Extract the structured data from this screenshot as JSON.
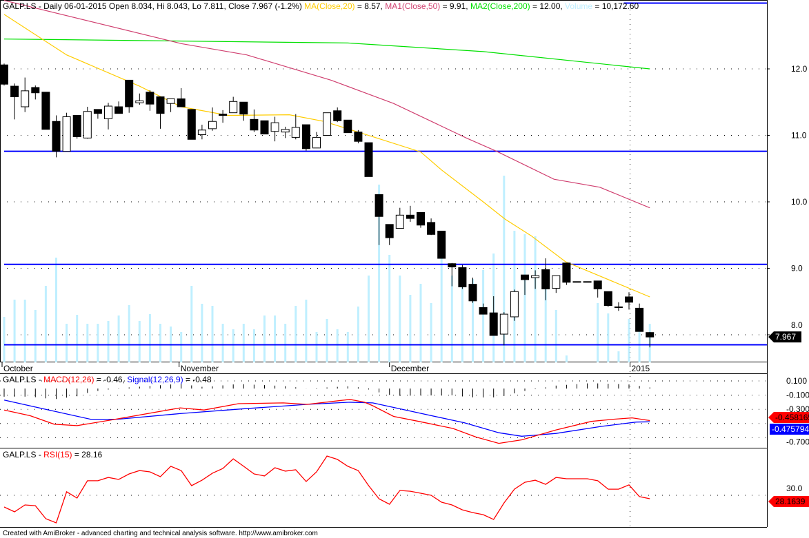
{
  "header": {
    "symbol": "GALP.LS - Daily 06-01-2015 Open 8.034, Hi 8.043, Lo 7.811, Close 7.967 (-1.2%) ",
    "ma20_label": "MA(Close,20)",
    "ma20_value": " = 8.57, ",
    "ma50_label": "MA1(Close,50)",
    "ma50_value": " = 9.91, ",
    "ma200_label": "MA2(Close,200)",
    "ma200_value": " = 12.00, ",
    "volume_label": "Volume",
    "volume_value": " = 10,172.60"
  },
  "macd_header": {
    "prefix": "GALP.LS - ",
    "macd_label": "MACD(12,26)",
    "macd_value": " = -0.46, ",
    "signal_label": "Signal(12,26,9)",
    "signal_value": " = -0.48"
  },
  "rsi_header": {
    "prefix": "GALP.LS - ",
    "rsi_label": "RSI(15)",
    "rsi_value": " = 28.16"
  },
  "footer": "Created with AmiBroker - advanced charting and technical analysis software. http://www.amibroker.com",
  "colors": {
    "ma20": "#ffcc00",
    "ma50": "#d04070",
    "ma200": "#00e000",
    "volume": "#bfefff",
    "levels": "#0000ff",
    "macd": "#ff0000",
    "signal": "#0000ff",
    "rsi": "#ff0000"
  },
  "chart_data": [
    {
      "type": "candlestick",
      "title": "GALP.LS - Daily",
      "x_labels": [
        {
          "index": 0,
          "label": "October"
        },
        {
          "index": 17,
          "label": "November"
        },
        {
          "index": 37.2,
          "label": "December"
        },
        {
          "index": 60.3,
          "label": "2015"
        }
      ],
      "y_ticks": [
        "12.0",
        "11.0",
        "10.0",
        "9.0",
        "8.0"
      ],
      "y_tick_values": [
        12,
        11,
        10,
        9,
        8
      ],
      "ylim": [
        7.74,
        13.03
      ],
      "last_price_tag": "7.967",
      "ohlc": [
        [
          12.06,
          12.08,
          11.75,
          11.77
        ],
        [
          11.74,
          11.78,
          11.24,
          11.58
        ],
        [
          11.43,
          11.87,
          11.35,
          11.67
        ],
        [
          11.72,
          11.75,
          11.54,
          11.64
        ],
        [
          11.65,
          11.65,
          11.09,
          11.09
        ],
        [
          11.21,
          11.3,
          10.67,
          10.76
        ],
        [
          10.76,
          11.34,
          10.76,
          11.28
        ],
        [
          11.3,
          11.3,
          10.95,
          10.98
        ],
        [
          10.96,
          11.43,
          10.95,
          11.36
        ],
        [
          11.39,
          11.39,
          11.25,
          11.33
        ],
        [
          11.25,
          11.49,
          11.09,
          11.44
        ],
        [
          11.43,
          11.51,
          11.33,
          11.33
        ],
        [
          11.83,
          11.83,
          11.34,
          11.43
        ],
        [
          11.49,
          11.63,
          11.46,
          11.52
        ],
        [
          11.65,
          11.68,
          11.37,
          11.47
        ],
        [
          11.58,
          11.58,
          11.1,
          11.33
        ],
        [
          11.48,
          11.55,
          11.35,
          11.55
        ],
        [
          11.55,
          11.71,
          11.43,
          11.43
        ],
        [
          11.39,
          11.39,
          10.94,
          10.94
        ],
        [
          11.01,
          11.16,
          10.94,
          11.08
        ],
        [
          11.1,
          11.42,
          11.07,
          11.21
        ],
        [
          11.32,
          11.38,
          11.19,
          11.3
        ],
        [
          11.34,
          11.58,
          11.34,
          11.51
        ],
        [
          11.5,
          11.5,
          11.22,
          11.32
        ],
        [
          11.24,
          11.39,
          11.05,
          11.08
        ],
        [
          11.22,
          11.22,
          11.02,
          11.02
        ],
        [
          11.06,
          11.28,
          10.91,
          11.19
        ],
        [
          11.05,
          11.13,
          10.96,
          11.09
        ],
        [
          10.97,
          11.32,
          10.94,
          11.12
        ],
        [
          11.16,
          11.16,
          10.77,
          10.8
        ],
        [
          10.81,
          11.05,
          10.81,
          10.97
        ],
        [
          11.0,
          11.34,
          11.0,
          11.34
        ],
        [
          11.37,
          11.42,
          11.2,
          11.22
        ],
        [
          11.23,
          11.23,
          11.04,
          11.04
        ],
        [
          11.05,
          11.08,
          10.88,
          10.91
        ],
        [
          10.89,
          10.89,
          10.38,
          10.38
        ],
        [
          10.11,
          10.11,
          9.35,
          9.78
        ],
        [
          9.66,
          9.66,
          9.35,
          9.46
        ],
        [
          9.6,
          9.91,
          9.6,
          9.8
        ],
        [
          9.8,
          9.94,
          9.7,
          9.75
        ],
        [
          9.84,
          9.84,
          9.61,
          9.65
        ],
        [
          9.69,
          9.75,
          9.5,
          9.51
        ],
        [
          9.56,
          9.56,
          9.15,
          9.15
        ],
        [
          9.07,
          9.08,
          8.73,
          9.02
        ],
        [
          9.01,
          9.05,
          8.69,
          8.72
        ],
        [
          8.76,
          8.86,
          8.48,
          8.51
        ],
        [
          8.41,
          8.47,
          8.31,
          8.31
        ],
        [
          8.33,
          8.58,
          7.99,
          7.99
        ],
        [
          8.01,
          8.34,
          7.84,
          8.31
        ],
        [
          8.27,
          8.68,
          8.21,
          8.65
        ],
        [
          8.9,
          8.9,
          8.6,
          8.83
        ],
        [
          8.86,
          8.97,
          8.69,
          8.89
        ],
        [
          8.98,
          9.15,
          8.52,
          8.69
        ],
        [
          8.7,
          8.89,
          8.63,
          8.89
        ],
        [
          9.08,
          9.08,
          8.75,
          8.79
        ],
        [
          8.8,
          8.8,
          8.8,
          8.8
        ],
        [
          8.8,
          8.8,
          8.8,
          8.8
        ],
        [
          8.81,
          8.81,
          8.56,
          8.69
        ],
        [
          8.65,
          8.65,
          8.42,
          8.44
        ],
        [
          8.42,
          8.49,
          8.36,
          8.42
        ],
        [
          8.57,
          8.64,
          8.38,
          8.49
        ],
        [
          8.4,
          8.47,
          8.05,
          8.05
        ],
        [
          8.034,
          8.043,
          7.811,
          7.967
        ]
      ],
      "volume": [
        12010,
        16560,
        16560,
        13830,
        20200,
        27660,
        10190,
        12560,
        10190,
        10190,
        10920,
        12380,
        15110,
        10920,
        12740,
        10190,
        9460,
        8010,
        20200,
        15470,
        14920,
        10190,
        8740,
        10190,
        8740,
        12380,
        12380,
        10190,
        14920,
        16560,
        8010,
        11470,
        8740,
        8010,
        14740,
        22930,
        46960,
        28390,
        22930,
        17840,
        20750,
        15650,
        27480,
        22930,
        21290,
        22020,
        24390,
        28760,
        49320,
        34760,
        33850,
        33310,
        21110,
        13830,
        1820,
        0,
        0,
        15650,
        12920,
        2910,
        11470,
        8370,
        10172.6
      ],
      "ma20": [
        [
          0,
          12.82
        ],
        [
          6,
          12.21
        ],
        [
          13,
          11.74
        ],
        [
          17,
          11.43
        ],
        [
          21.5,
          11.3
        ],
        [
          27.4,
          11.31
        ],
        [
          30.7,
          11.21
        ],
        [
          35.4,
          10.98
        ],
        [
          40,
          10.75
        ],
        [
          42,
          10.48
        ],
        [
          46,
          10.0
        ],
        [
          48.1,
          9.74
        ],
        [
          50.6,
          9.49
        ],
        [
          53.9,
          9.1
        ],
        [
          56.8,
          8.91
        ],
        [
          59.4,
          8.74
        ],
        [
          62,
          8.57
        ]
      ],
      "ma50": [
        [
          0,
          13.03
        ],
        [
          17,
          12.38
        ],
        [
          23.3,
          12.21
        ],
        [
          31.4,
          11.83
        ],
        [
          37.4,
          11.48
        ],
        [
          44.4,
          10.96
        ],
        [
          47.3,
          10.76
        ],
        [
          52.8,
          10.34
        ],
        [
          57.2,
          10.22
        ],
        [
          62,
          9.91
        ]
      ],
      "ma200": [
        [
          0,
          12.45
        ],
        [
          33,
          12.39
        ],
        [
          46,
          12.26
        ],
        [
          62,
          12.0
        ]
      ],
      "horizontal_levels": [
        {
          "value": 12.99,
          "from_index": 59.5
        },
        {
          "value": 10.76,
          "from_index": 0
        },
        {
          "value": 9.06,
          "from_index": 0
        },
        {
          "value": 7.85,
          "from_index": 0
        }
      ]
    },
    {
      "type": "line",
      "title": "MACD(12,26), Signal(12,26,9)",
      "y_ticks": [
        "0.100",
        "-0.100",
        "-0.300",
        "-0.700"
      ],
      "y_tick_values": [
        0.1,
        -0.1,
        -0.3,
        -0.7
      ],
      "macd_tag": "-0.458165",
      "signal_tag": "-0.475794",
      "macd": [
        [
          0,
          -0.31
        ],
        [
          2.5,
          -0.39
        ],
        [
          4.8,
          -0.51
        ],
        [
          7,
          -0.53
        ],
        [
          10.3,
          -0.45
        ],
        [
          16.9,
          -0.28
        ],
        [
          19.2,
          -0.31
        ],
        [
          22.5,
          -0.22
        ],
        [
          26.8,
          -0.21
        ],
        [
          29.1,
          -0.23
        ],
        [
          33.2,
          -0.16
        ],
        [
          34.6,
          -0.2
        ],
        [
          35.4,
          -0.25
        ],
        [
          37.4,
          -0.4
        ],
        [
          39.8,
          -0.47
        ],
        [
          43.1,
          -0.57
        ],
        [
          45.3,
          -0.69
        ],
        [
          47.5,
          -0.78
        ],
        [
          49.7,
          -0.73
        ],
        [
          53,
          -0.59
        ],
        [
          56.4,
          -0.47
        ],
        [
          58.5,
          -0.44
        ],
        [
          60.3,
          -0.42
        ],
        [
          62,
          -0.458
        ]
      ],
      "signal": [
        [
          0,
          -0.17
        ],
        [
          4.3,
          -0.31
        ],
        [
          8.3,
          -0.44
        ],
        [
          10.9,
          -0.44
        ],
        [
          16.9,
          -0.36
        ],
        [
          23.2,
          -0.29
        ],
        [
          29.1,
          -0.23
        ],
        [
          33.2,
          -0.2
        ],
        [
          35.4,
          -0.21
        ],
        [
          39.8,
          -0.35
        ],
        [
          44.2,
          -0.49
        ],
        [
          47.5,
          -0.63
        ],
        [
          49.7,
          -0.68
        ],
        [
          53,
          -0.64
        ],
        [
          57.4,
          -0.54
        ],
        [
          60.7,
          -0.48
        ],
        [
          62,
          -0.476
        ]
      ]
    },
    {
      "type": "line",
      "title": "RSI(15)",
      "y_ticks": [
        "30.0"
      ],
      "y_tick_values": [
        30
      ],
      "rsi_tag": "28.1639",
      "rsi": [
        23.7,
        21.1,
        24.8,
        24.4,
        17.4,
        15.2,
        31.9,
        28.5,
        37.8,
        37.8,
        39.6,
        38.5,
        41.5,
        43.3,
        42.6,
        40.0,
        45.6,
        43.3,
        35.2,
        38.1,
        41.9,
        44.4,
        49.6,
        45.6,
        41.5,
        40.4,
        44.8,
        43.0,
        43.7,
        37.4,
        42.6,
        51.1,
        49.3,
        45.6,
        43.3,
        35.2,
        28.1,
        25.2,
        32.6,
        32.2,
        31.1,
        30.0,
        26.3,
        24.8,
        22.2,
        20.7,
        19.6,
        17.0,
        25.9,
        33.3,
        37.0,
        38.1,
        35.9,
        39.6,
        38.9,
        38.9,
        38.9,
        37.8,
        33.3,
        33.3,
        35.6,
        29.3,
        28.16
      ]
    }
  ]
}
